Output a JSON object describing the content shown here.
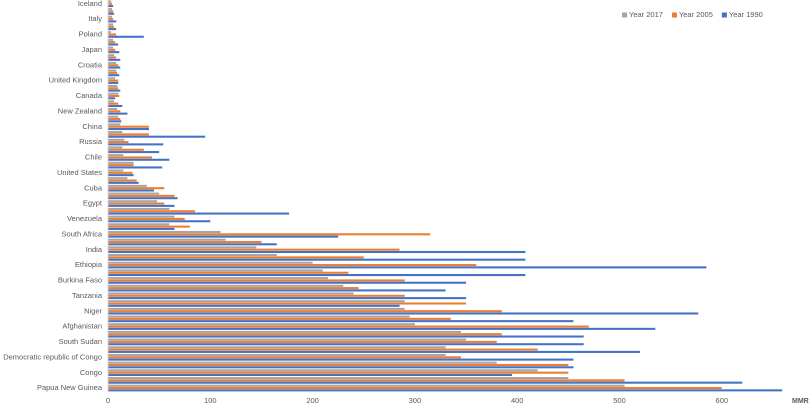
{
  "chart_data": {
    "type": "hbar",
    "x_label": "MMR",
    "legend": "top-right",
    "grid": false,
    "xlim": [
      0,
      670
    ],
    "xticks": [
      0,
      100,
      200,
      300,
      400,
      500,
      600
    ],
    "categories": [
      "Iceland",
      null,
      "Italy",
      null,
      "Poland",
      null,
      "Japan",
      null,
      "Croatia",
      null,
      "United Kingdom",
      null,
      "Canada",
      null,
      "New Zealand",
      null,
      "China",
      null,
      "Russia",
      null,
      "Chile",
      null,
      "United States",
      null,
      "Cuba",
      null,
      "Egypt",
      null,
      "Venezuela",
      null,
      "South Africa",
      null,
      "India",
      null,
      "Ethiopia",
      null,
      "Burkina Faso",
      null,
      "Tanzania",
      null,
      "Niger",
      null,
      "Afghanistan",
      null,
      "South Sudan",
      null,
      "Democratic republic of Congo",
      null,
      "Congo",
      null,
      "Papua New Guinea"
    ],
    "series": [
      {
        "name": "Year 2017",
        "color": "#a5a5a5",
        "values": [
          3,
          4,
          4,
          5,
          3,
          5,
          5,
          6,
          8,
          8,
          7,
          9,
          10,
          6,
          9,
          10,
          12,
          14,
          16,
          14,
          15,
          25,
          15,
          19,
          38,
          50,
          48,
          60,
          65,
          60,
          110,
          115,
          145,
          165,
          200,
          210,
          215,
          230,
          240,
          290,
          290,
          295,
          300,
          345,
          350,
          330,
          330,
          380,
          420,
          450,
          505
        ]
      },
      {
        "name": "Year 2005",
        "color": "#ed7d31",
        "values": [
          4,
          5,
          5,
          6,
          8,
          7,
          7,
          8,
          10,
          9,
          10,
          10,
          11,
          10,
          12,
          12,
          40,
          40,
          20,
          35,
          43,
          25,
          24,
          28,
          55,
          65,
          55,
          85,
          75,
          80,
          315,
          150,
          285,
          250,
          360,
          235,
          290,
          245,
          290,
          350,
          385,
          335,
          470,
          385,
          380,
          420,
          345,
          450,
          450,
          505,
          600
        ]
      },
      {
        "name": "Year 1990",
        "color": "#4472c4",
        "values": [
          5,
          6,
          8,
          8,
          35,
          10,
          11,
          12,
          12,
          11,
          10,
          12,
          7,
          14,
          19,
          13,
          40,
          95,
          54,
          50,
          60,
          53,
          25,
          30,
          45,
          68,
          65,
          177,
          100,
          65,
          225,
          165,
          408,
          408,
          585,
          408,
          350,
          330,
          350,
          285,
          577,
          455,
          535,
          465,
          465,
          520,
          455,
          455,
          395,
          620,
          659
        ]
      }
    ]
  }
}
